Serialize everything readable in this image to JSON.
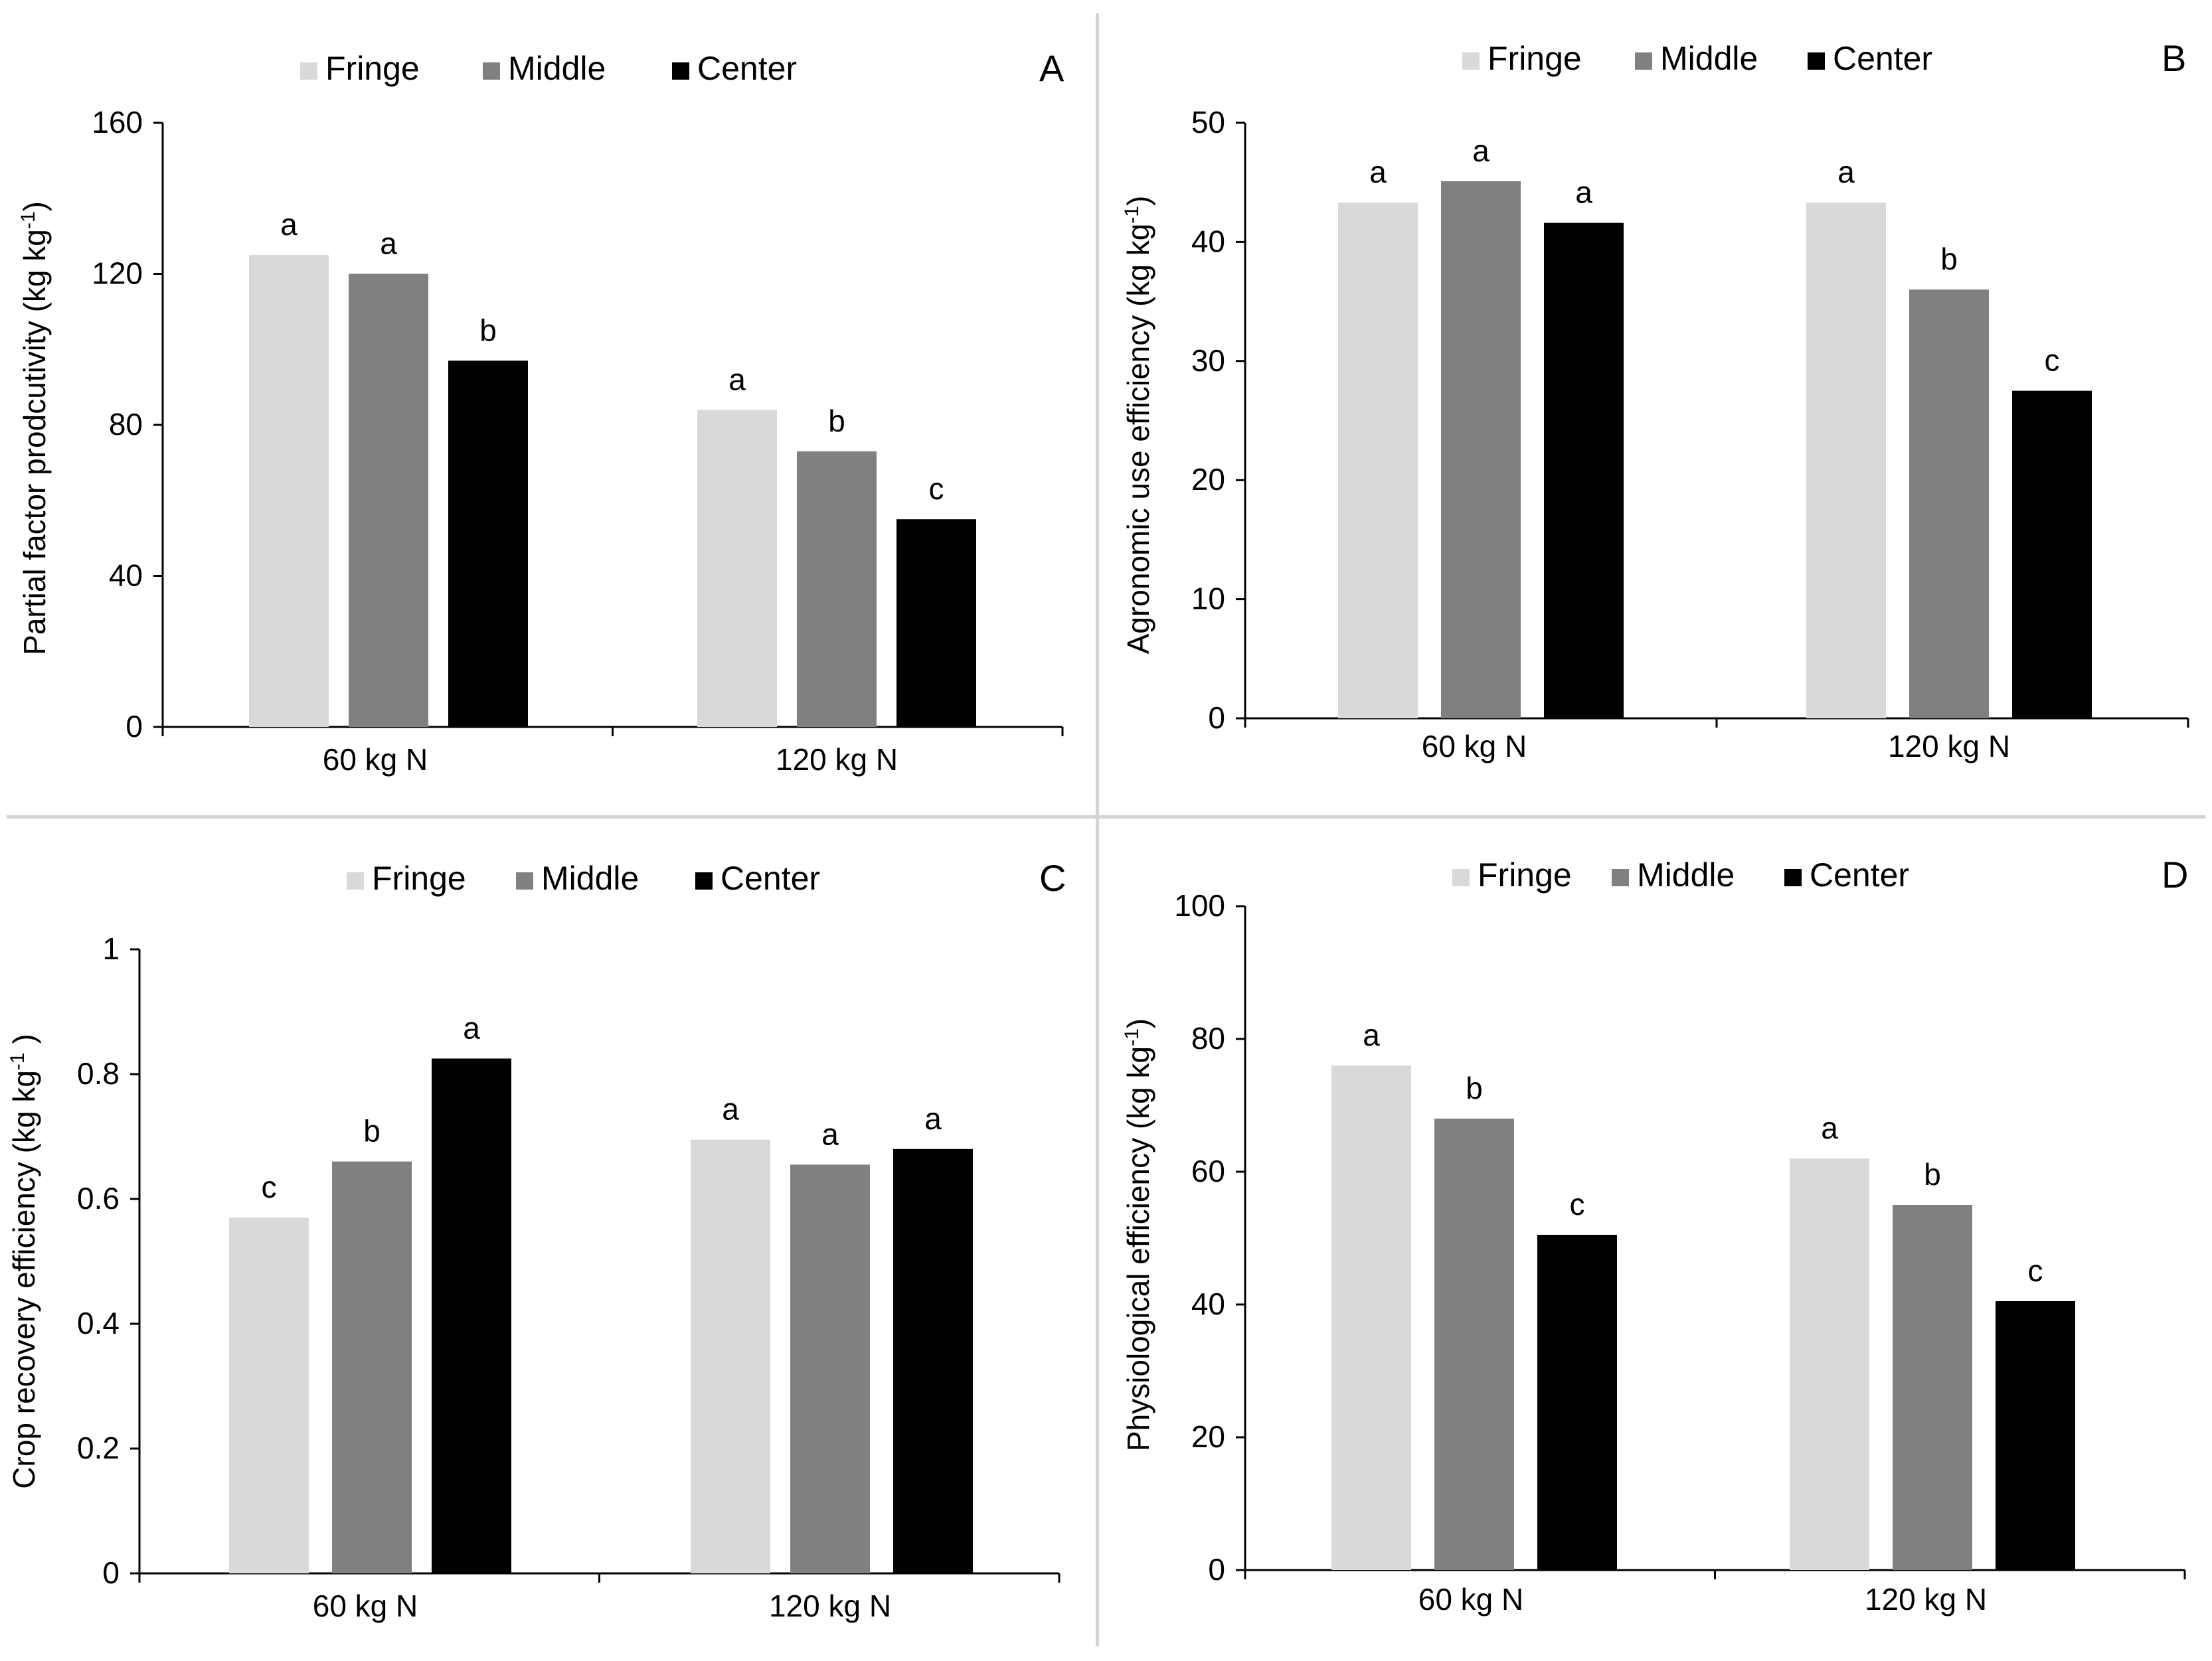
{
  "chart_data": [
    {
      "panel": "A",
      "type": "bar",
      "categories": [
        "60  kg N",
        "120  kg N"
      ],
      "series": [
        {
          "name": "Fringe",
          "values": [
            125,
            84
          ],
          "letters": [
            "a",
            "a"
          ]
        },
        {
          "name": "Middle",
          "values": [
            120,
            73
          ],
          "letters": [
            "a",
            "b"
          ]
        },
        {
          "name": "Center",
          "values": [
            97,
            55
          ],
          "letters": [
            "b",
            "c"
          ]
        }
      ],
      "ylabel": "Partial factor prodcutivity  (kg kg",
      "ylabel_sup": "-1",
      "ylabel_end": ")",
      "yticks": [
        "0",
        "40",
        "80",
        "120",
        "160"
      ],
      "ylim": [
        0,
        160
      ],
      "legend": "top"
    },
    {
      "panel": "B",
      "type": "bar",
      "categories": [
        "60  kg N",
        "120  kg N"
      ],
      "series": [
        {
          "name": "Fringe",
          "values": [
            43.3,
            43.3
          ],
          "letters": [
            "a",
            "a"
          ]
        },
        {
          "name": "Middle",
          "values": [
            45.1,
            36
          ],
          "letters": [
            "a",
            "b"
          ]
        },
        {
          "name": "Center",
          "values": [
            41.6,
            27.5
          ],
          "letters": [
            "a",
            "c"
          ]
        }
      ],
      "ylabel": "Agronomic  use efficiency  (kg  kg",
      "ylabel_sup": "-1",
      "ylabel_end": ")",
      "yticks": [
        "0",
        "10",
        "20",
        "30",
        "40",
        "50"
      ],
      "ylim": [
        0,
        50
      ],
      "legend": "top"
    },
    {
      "panel": "C",
      "type": "bar",
      "categories": [
        "60  kg N",
        "120  kg N"
      ],
      "series": [
        {
          "name": "Fringe",
          "values": [
            0.57,
            0.695
          ],
          "letters": [
            "c",
            "a"
          ]
        },
        {
          "name": "Middle",
          "values": [
            0.66,
            0.655
          ],
          "letters": [
            "b",
            "a"
          ]
        },
        {
          "name": "Center",
          "values": [
            0.825,
            0.68
          ],
          "letters": [
            "a",
            "a"
          ]
        }
      ],
      "ylabel": "Crop  recovery  efficiency  (kg kg",
      "ylabel_sup": "-1",
      "ylabel_end": " )",
      "yticks": [
        "0",
        "0.2",
        "0.4",
        "0.6",
        "0.8",
        "1"
      ],
      "ylim": [
        0,
        1
      ],
      "legend": "top"
    },
    {
      "panel": "D",
      "type": "bar",
      "categories": [
        "60  kg N",
        "120  kg N"
      ],
      "series": [
        {
          "name": "Fringe",
          "values": [
            76,
            62
          ],
          "letters": [
            "a",
            "a"
          ]
        },
        {
          "name": "Middle",
          "values": [
            68,
            55
          ],
          "letters": [
            "b",
            "b"
          ]
        },
        {
          "name": "Center",
          "values": [
            50.5,
            40.5
          ],
          "letters": [
            "c",
            "c"
          ]
        }
      ],
      "ylabel": "Physiological  efficiency  (kg kg",
      "ylabel_sup": "-1",
      "ylabel_end": ")",
      "yticks": [
        "0",
        "20",
        "40",
        "60",
        "80",
        "100"
      ],
      "ylim": [
        0,
        100
      ],
      "legend": "top"
    }
  ],
  "colors": {
    "Fringe": "#d9d9d9",
    "Middle": "#808080",
    "Center": "#000000",
    "axis": "#000000",
    "text": "#000000"
  }
}
